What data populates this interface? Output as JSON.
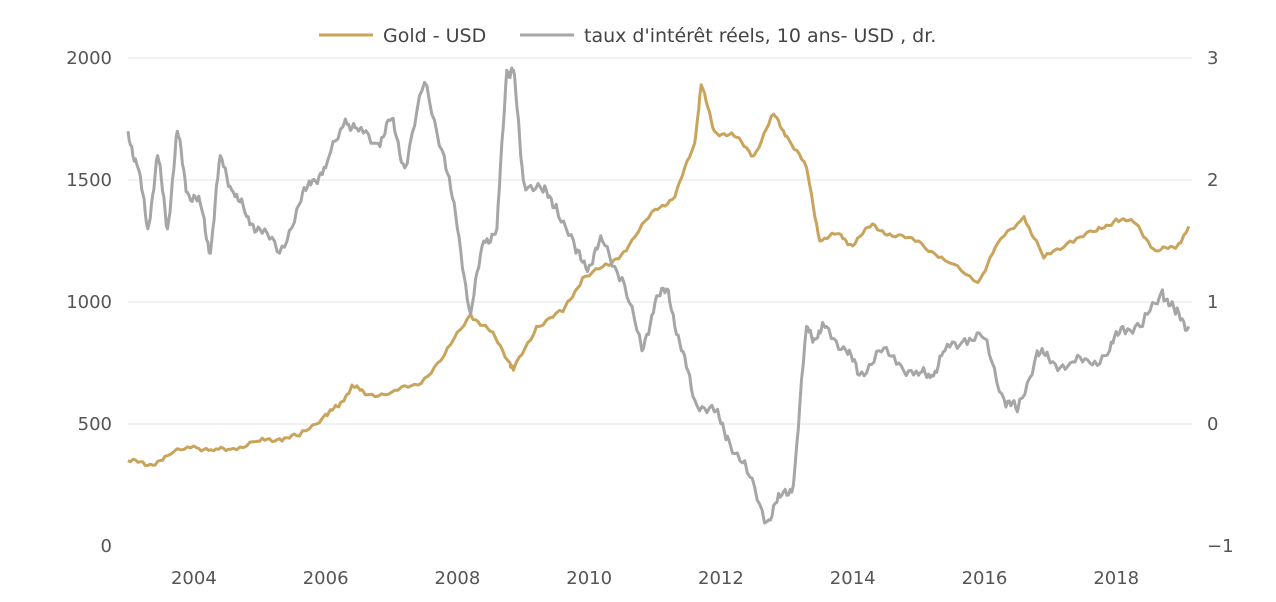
{
  "chart_data": {
    "type": "line",
    "title": "",
    "x_ticks": [
      "2004",
      "2006",
      "2008",
      "2010",
      "2012",
      "2014",
      "2016",
      "2018"
    ],
    "x_range": [
      2003.0,
      2019.15
    ],
    "y_left": {
      "range": [
        0,
        2000
      ],
      "ticks": [
        "0",
        "500",
        "1000",
        "1500",
        "2000"
      ]
    },
    "y_right": {
      "range": [
        -1,
        3
      ],
      "ticks": [
        "−1",
        "0",
        "1",
        "2",
        "3"
      ]
    },
    "grid": true,
    "legend_position": "top-center",
    "series": [
      {
        "name": "Gold - USD",
        "axis": "left",
        "color": "#c9a45c",
        "x": [
          2003.0,
          2003.3,
          2003.6,
          2004.0,
          2004.3,
          2004.6,
          2005.0,
          2005.3,
          2005.6,
          2006.0,
          2006.2,
          2006.4,
          2006.6,
          2007.0,
          2007.4,
          2007.8,
          2008.2,
          2008.5,
          2008.8,
          2008.85,
          2009.2,
          2009.6,
          2009.9,
          2010.3,
          2010.6,
          2011.0,
          2011.3,
          2011.6,
          2011.7,
          2011.9,
          2012.2,
          2012.5,
          2012.8,
          2013.0,
          2013.3,
          2013.5,
          2013.8,
          2014.0,
          2014.3,
          2014.6,
          2015.0,
          2015.4,
          2015.9,
          2016.2,
          2016.6,
          2016.9,
          2017.3,
          2017.7,
          2018.0,
          2018.3,
          2018.6,
          2018.9,
          2019.1
        ],
        "y": [
          350,
          330,
          370,
          410,
          390,
          400,
          430,
          440,
          450,
          540,
          570,
          660,
          620,
          630,
          660,
          780,
          950,
          880,
          750,
          720,
          900,
          960,
          1100,
          1150,
          1230,
          1380,
          1430,
          1650,
          1890,
          1700,
          1680,
          1600,
          1770,
          1680,
          1550,
          1250,
          1280,
          1230,
          1320,
          1270,
          1250,
          1170,
          1080,
          1240,
          1350,
          1180,
          1250,
          1290,
          1340,
          1320,
          1210,
          1220,
          1310
        ]
      },
      {
        "name": "taux d'intérêt réels, 10 ans- USD , dr.",
        "axis": "right",
        "color": "#a6a6a6",
        "x": [
          2003.0,
          2003.15,
          2003.3,
          2003.45,
          2003.6,
          2003.75,
          2003.9,
          2004.1,
          2004.25,
          2004.4,
          2004.6,
          2004.8,
          2005.0,
          2005.3,
          2005.6,
          2005.8,
          2006.0,
          2006.3,
          2006.5,
          2006.8,
          2007.0,
          2007.2,
          2007.5,
          2007.8,
          2008.0,
          2008.2,
          2008.4,
          2008.6,
          2008.75,
          2008.85,
          2009.0,
          2009.3,
          2009.5,
          2009.8,
          2010.0,
          2010.2,
          2010.5,
          2010.8,
          2011.0,
          2011.2,
          2011.4,
          2011.6,
          2011.9,
          2012.1,
          2012.4,
          2012.7,
          2012.9,
          2013.1,
          2013.3,
          2013.45,
          2013.6,
          2013.9,
          2014.1,
          2014.4,
          2014.7,
          2015.0,
          2015.2,
          2015.4,
          2015.7,
          2016.0,
          2016.3,
          2016.5,
          2016.8,
          2017.0,
          2017.3,
          2017.6,
          2017.9,
          2018.1,
          2018.4,
          2018.7,
          2018.9,
          2019.1
        ],
        "y": [
          2.4,
          2.1,
          1.6,
          2.2,
          1.6,
          2.4,
          1.9,
          1.8,
          1.4,
          2.2,
          1.9,
          1.7,
          1.6,
          1.4,
          1.8,
          2.0,
          2.1,
          2.5,
          2.4,
          2.3,
          2.5,
          2.1,
          2.8,
          2.2,
          1.6,
          0.9,
          1.5,
          1.6,
          2.9,
          2.9,
          2.0,
          1.9,
          1.8,
          1.4,
          1.3,
          1.5,
          1.2,
          0.6,
          1.0,
          1.1,
          0.6,
          0.2,
          0.1,
          -0.1,
          -0.4,
          -0.8,
          -0.6,
          -0.5,
          0.8,
          0.7,
          0.8,
          0.6,
          0.4,
          0.6,
          0.5,
          0.4,
          0.4,
          0.6,
          0.7,
          0.7,
          0.2,
          0.1,
          0.6,
          0.5,
          0.5,
          0.5,
          0.6,
          0.8,
          0.8,
          1.1,
          0.9,
          0.8
        ]
      }
    ]
  }
}
